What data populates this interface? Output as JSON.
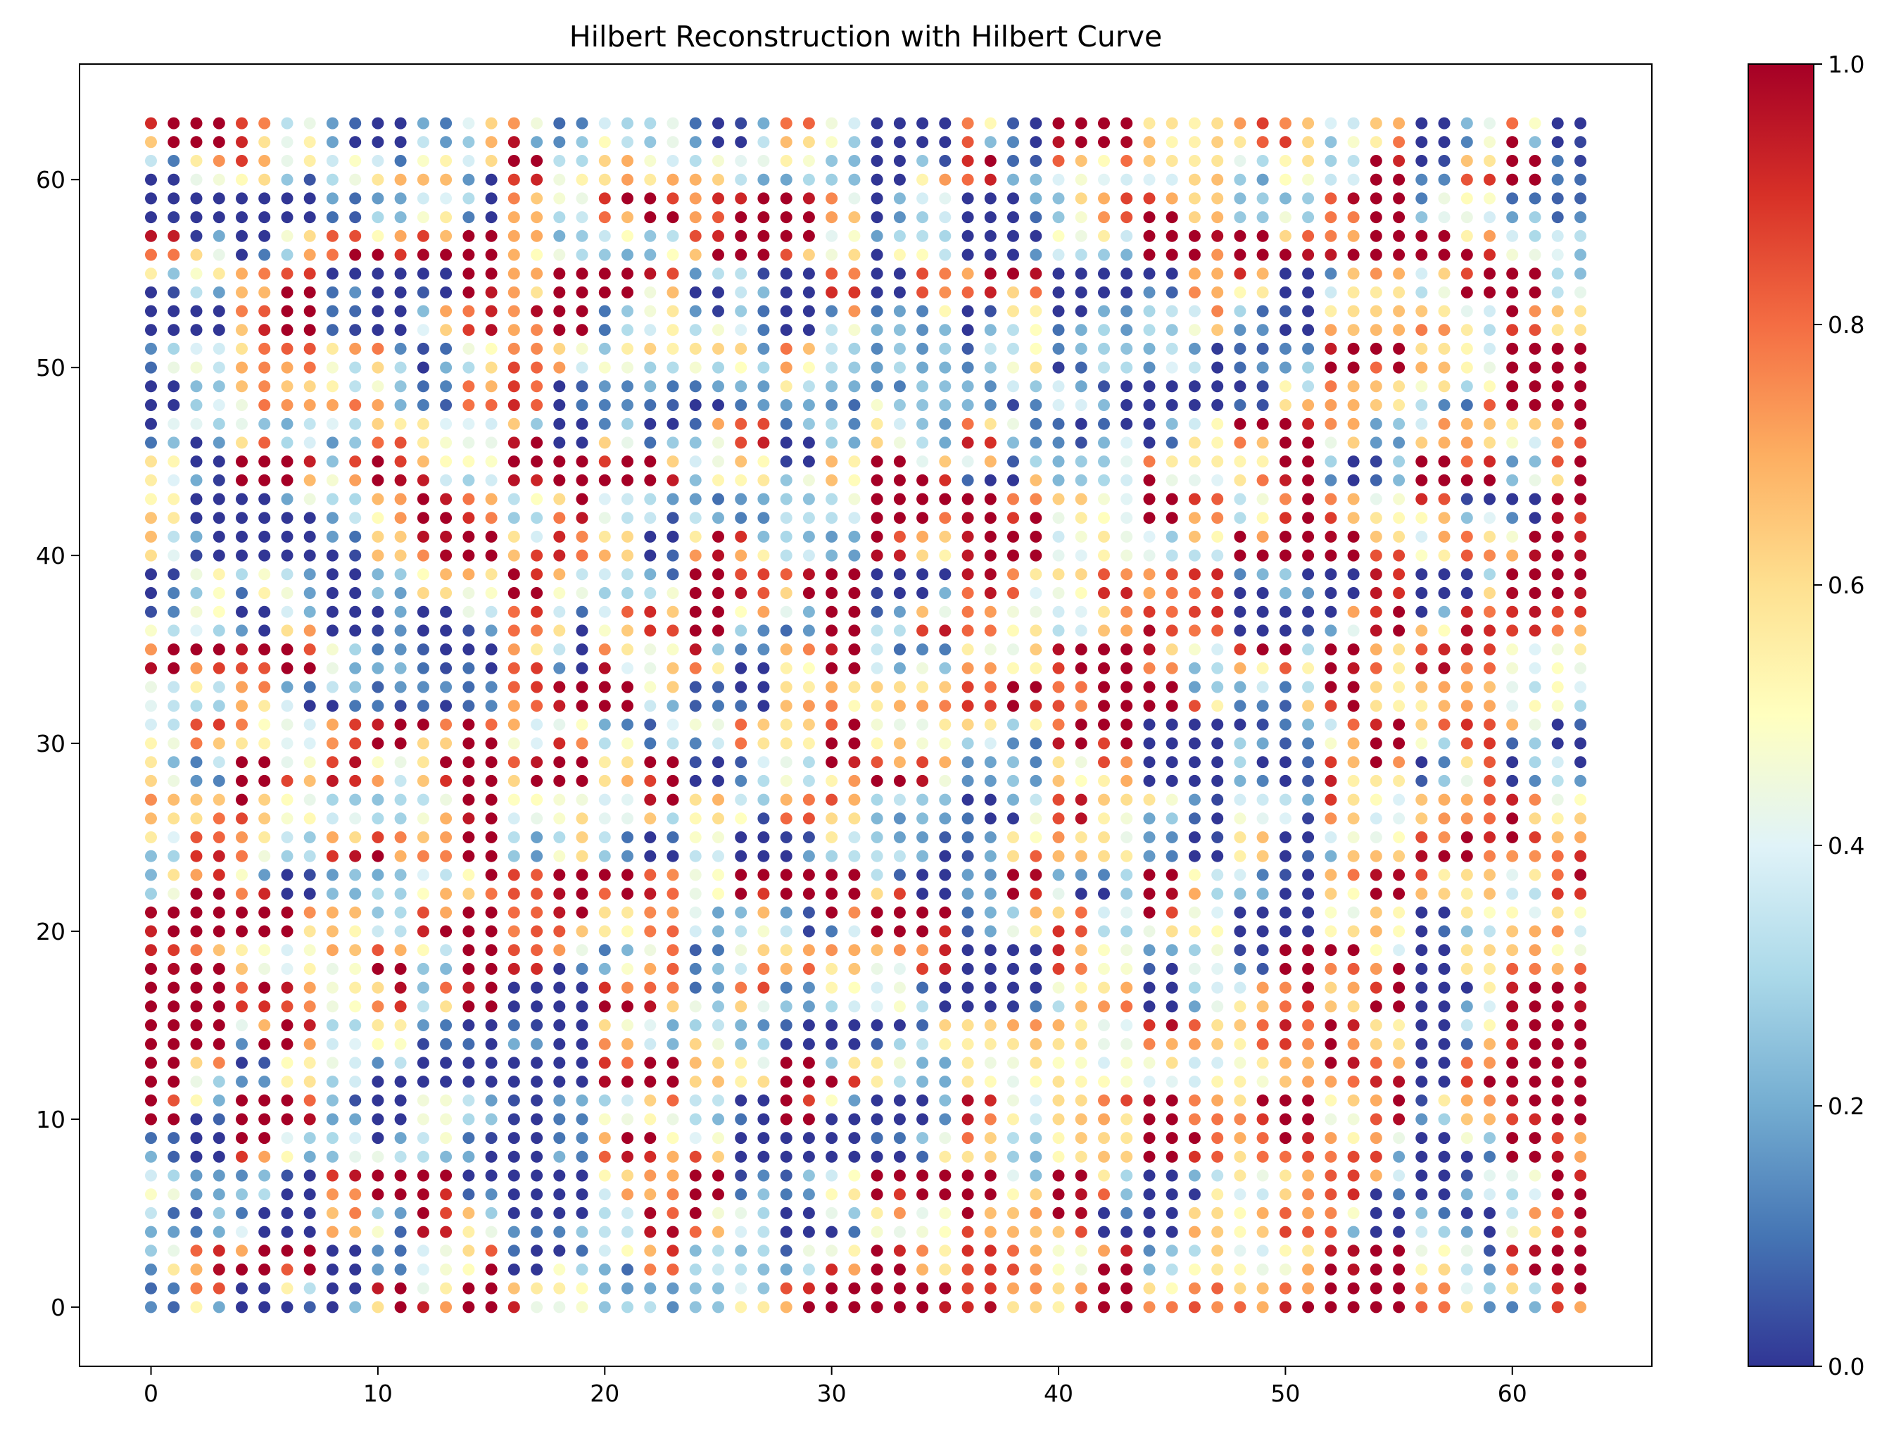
{
  "chart_data": {
    "type": "scatter",
    "title": "Hilbert Reconstruction with Hilbert Curve",
    "xlabel": "",
    "ylabel": "",
    "grid_size": 64,
    "x_range": [
      0,
      63
    ],
    "y_range": [
      0,
      63
    ],
    "xlim": [
      -3.15,
      66.15
    ],
    "ylim": [
      -3.15,
      66.15
    ],
    "x_ticks": [
      0,
      10,
      20,
      30,
      40,
      50,
      60
    ],
    "y_ticks": [
      0,
      10,
      20,
      30,
      40,
      50,
      60
    ],
    "x_tick_labels": [
      "0",
      "10",
      "20",
      "30",
      "40",
      "50",
      "60"
    ],
    "y_tick_labels": [
      "0",
      "10",
      "20",
      "30",
      "40",
      "50",
      "60"
    ],
    "grid": false,
    "colormap": "RdYlBu_r",
    "value_range": [
      0.0,
      1.0
    ],
    "colorbar": {
      "placement": "right",
      "ticks": [
        0.0,
        0.2,
        0.4,
        0.6,
        0.8,
        1.0
      ],
      "tick_labels": [
        "0.0",
        "0.2",
        "0.4",
        "0.6",
        "0.8",
        "1.0"
      ]
    },
    "values_note_seed": 20240611
  }
}
